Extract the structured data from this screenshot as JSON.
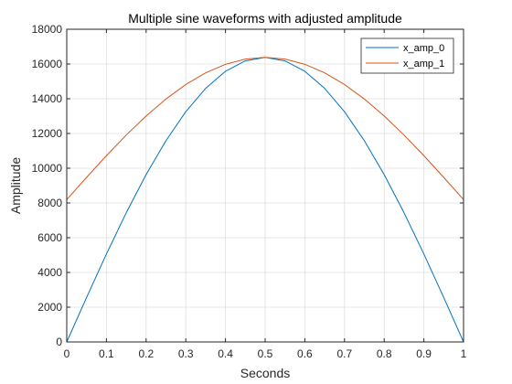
{
  "chart_data": {
    "type": "line",
    "title": "Multiple sine waveforms with adjusted amplitude",
    "xlabel": "Seconds",
    "ylabel": "Amplitude",
    "xlim": [
      0,
      1
    ],
    "ylim": [
      0,
      18000
    ],
    "grid": true,
    "legend_position": "top-right",
    "x_ticks": [
      0,
      0.1,
      0.2,
      0.3,
      0.4,
      0.5,
      0.6,
      0.7,
      0.8,
      0.9,
      1
    ],
    "x_tick_labels": [
      "0",
      "0.1",
      "0.2",
      "0.3",
      "0.4",
      "0.5",
      "0.6",
      "0.7",
      "0.8",
      "0.9",
      "1"
    ],
    "y_ticks": [
      0,
      2000,
      4000,
      6000,
      8000,
      10000,
      12000,
      14000,
      16000,
      18000
    ],
    "y_tick_labels": [
      "0",
      "2000",
      "4000",
      "6000",
      "8000",
      "10000",
      "12000",
      "14000",
      "16000",
      "18000"
    ],
    "x": [
      0,
      0.05,
      0.1,
      0.15,
      0.2,
      0.25,
      0.3,
      0.35,
      0.4,
      0.45,
      0.5,
      0.55,
      0.6,
      0.65,
      0.7,
      0.75,
      0.8,
      0.85,
      0.9,
      0.95,
      1
    ],
    "series": [
      {
        "name": "x_amp_0",
        "color": "#0072bd",
        "values": [
          0,
          2563,
          5063,
          7439,
          9630,
          11585,
          13254,
          14597,
          15580,
          16180,
          16384,
          16180,
          15580,
          14597,
          13254,
          11585,
          9630,
          7439,
          5063,
          2563,
          0
        ]
      },
      {
        "name": "x_amp_1",
        "color": "#d95319",
        "values": [
          8192,
          9474,
          10724,
          11911,
          13007,
          13985,
          14819,
          15491,
          15982,
          16282,
          16384,
          16282,
          15982,
          15491,
          14819,
          13985,
          13007,
          11911,
          10724,
          9474,
          8192
        ]
      }
    ]
  }
}
